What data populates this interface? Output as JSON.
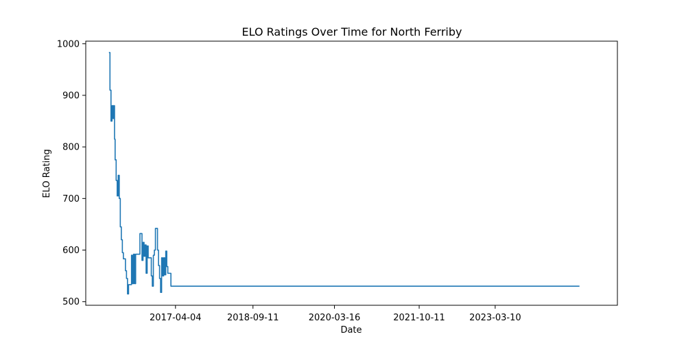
{
  "chart_data": {
    "type": "line",
    "title": "ELO Ratings Over Time for North Ferriby",
    "xlabel": "Date",
    "ylabel": "ELO Rating",
    "x_ticks": [
      "2017-04-04",
      "2018-09-11",
      "2020-03-16",
      "2021-10-11",
      "2023-03-10"
    ],
    "y_ticks": [
      500,
      600,
      700,
      800,
      900,
      1000
    ],
    "xlim": [
      "2015-08-05",
      "2025-06-15"
    ],
    "ylim": [
      493,
      1005
    ],
    "grid": false,
    "series": [
      {
        "color": "#1f77b4",
        "points": [
          [
            "2016-01-09",
            983
          ],
          [
            "2016-01-16",
            983
          ],
          [
            "2016-01-16",
            910
          ],
          [
            "2016-01-23",
            910
          ],
          [
            "2016-01-23",
            850
          ],
          [
            "2016-01-30",
            850
          ],
          [
            "2016-01-30",
            880
          ],
          [
            "2016-02-06",
            880
          ],
          [
            "2016-02-06",
            855
          ],
          [
            "2016-02-10",
            855
          ],
          [
            "2016-02-10",
            880
          ],
          [
            "2016-02-16",
            880
          ],
          [
            "2016-02-16",
            815
          ],
          [
            "2016-02-20",
            815
          ],
          [
            "2016-02-20",
            775
          ],
          [
            "2016-02-27",
            775
          ],
          [
            "2016-02-27",
            735
          ],
          [
            "2016-03-05",
            735
          ],
          [
            "2016-03-05",
            705
          ],
          [
            "2016-03-12",
            705
          ],
          [
            "2016-03-12",
            745
          ],
          [
            "2016-03-19",
            745
          ],
          [
            "2016-03-19",
            700
          ],
          [
            "2016-03-26",
            700
          ],
          [
            "2016-03-26",
            645
          ],
          [
            "2016-04-02",
            645
          ],
          [
            "2016-04-02",
            620
          ],
          [
            "2016-04-09",
            620
          ],
          [
            "2016-04-09",
            595
          ],
          [
            "2016-04-16",
            595
          ],
          [
            "2016-04-16",
            583
          ],
          [
            "2016-04-30",
            583
          ],
          [
            "2016-04-30",
            560
          ],
          [
            "2016-05-07",
            560
          ],
          [
            "2016-05-07",
            545
          ],
          [
            "2016-05-14",
            545
          ],
          [
            "2016-05-14",
            515
          ],
          [
            "2016-05-21",
            515
          ],
          [
            "2016-05-21",
            533
          ],
          [
            "2016-06-10",
            533
          ],
          [
            "2016-06-10",
            590
          ],
          [
            "2016-06-17",
            590
          ],
          [
            "2016-06-17",
            535
          ],
          [
            "2016-06-24",
            535
          ],
          [
            "2016-06-24",
            592
          ],
          [
            "2016-07-01",
            592
          ],
          [
            "2016-07-01",
            535
          ],
          [
            "2016-07-08",
            535
          ],
          [
            "2016-07-08",
            592
          ],
          [
            "2016-08-06",
            592
          ],
          [
            "2016-08-06",
            632
          ],
          [
            "2016-08-20",
            632
          ],
          [
            "2016-08-20",
            580
          ],
          [
            "2016-08-27",
            580
          ],
          [
            "2016-08-27",
            615
          ],
          [
            "2016-09-03",
            615
          ],
          [
            "2016-09-03",
            588
          ],
          [
            "2016-09-10",
            588
          ],
          [
            "2016-09-10",
            610
          ],
          [
            "2016-09-17",
            610
          ],
          [
            "2016-09-17",
            555
          ],
          [
            "2016-09-24",
            555
          ],
          [
            "2016-09-24",
            608
          ],
          [
            "2016-10-01",
            608
          ],
          [
            "2016-10-01",
            585
          ],
          [
            "2016-10-22",
            585
          ],
          [
            "2016-10-22",
            550
          ],
          [
            "2016-10-29",
            550
          ],
          [
            "2016-10-29",
            530
          ],
          [
            "2016-11-05",
            530
          ],
          [
            "2016-11-05",
            590
          ],
          [
            "2016-11-12",
            590
          ],
          [
            "2016-11-12",
            600
          ],
          [
            "2016-11-19",
            600
          ],
          [
            "2016-11-19",
            642
          ],
          [
            "2016-12-03",
            642
          ],
          [
            "2016-12-03",
            600
          ],
          [
            "2016-12-10",
            600
          ],
          [
            "2016-12-10",
            570
          ],
          [
            "2016-12-17",
            570
          ],
          [
            "2016-12-17",
            545
          ],
          [
            "2016-12-24",
            545
          ],
          [
            "2016-12-24",
            518
          ],
          [
            "2016-12-31",
            518
          ],
          [
            "2016-12-31",
            585
          ],
          [
            "2017-01-07",
            585
          ],
          [
            "2017-01-07",
            550
          ],
          [
            "2017-01-14",
            550
          ],
          [
            "2017-01-14",
            585
          ],
          [
            "2017-01-21",
            585
          ],
          [
            "2017-01-21",
            552
          ],
          [
            "2017-01-28",
            552
          ],
          [
            "2017-01-28",
            598
          ],
          [
            "2017-02-04",
            598
          ],
          [
            "2017-02-04",
            568
          ],
          [
            "2017-02-11",
            568
          ],
          [
            "2017-02-11",
            555
          ],
          [
            "2017-03-04",
            555
          ],
          [
            "2017-03-04",
            530
          ],
          [
            "2024-10-01",
            530
          ]
        ]
      }
    ]
  }
}
